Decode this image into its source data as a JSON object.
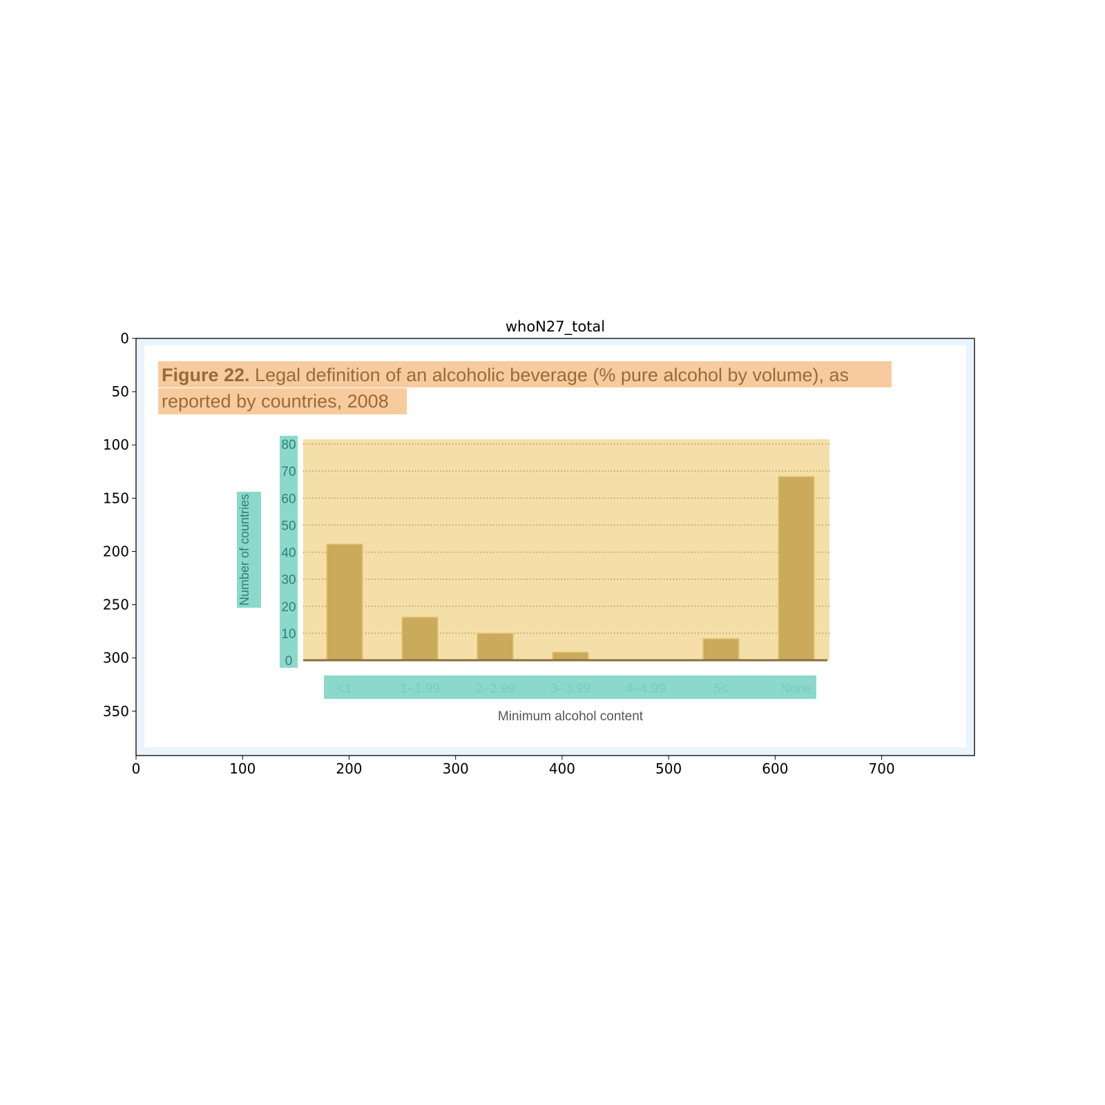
{
  "plot_title": "whoN27_total",
  "outer_axes": {
    "x_ticks": [
      "0",
      "100",
      "200",
      "300",
      "400",
      "500",
      "600",
      "700"
    ],
    "y_ticks": [
      "0",
      "50",
      "100",
      "150",
      "200",
      "250",
      "300",
      "350"
    ]
  },
  "figure_caption": {
    "bold": "Figure 22.",
    "line1": " Legal definition of an alcoholic beverage (% pure alcohol by volume), as",
    "line2": "reported by countries, 2008"
  },
  "chart_data": {
    "type": "bar",
    "categories": [
      "<1",
      "1–1.99",
      "2–2.99",
      "3–3.99",
      "4–4.99",
      "5≤",
      "None"
    ],
    "values": [
      43,
      16,
      10,
      3,
      0,
      8,
      68
    ],
    "ylabel": "Number of countries",
    "xlabel": "Minimum alcohol content",
    "ylim": [
      0,
      80
    ],
    "yticks": [
      "0",
      "10",
      "20",
      "30",
      "40",
      "50",
      "60",
      "70",
      "80"
    ],
    "grid": true
  },
  "colors": {
    "bar": "#c9ab5b",
    "plot_bg": "#f5dfa8",
    "caption_highlight": "#f7c594",
    "label_highlight": "#7fd5c6",
    "caption_text": "#9a6a3a",
    "tick_text": "#2f7f74",
    "frame_bg": "#eaf4fc"
  }
}
